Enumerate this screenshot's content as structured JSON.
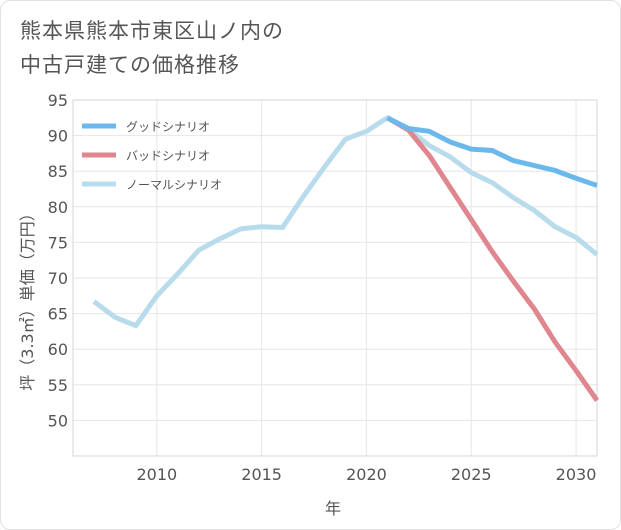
{
  "title_lines": [
    "熊本県熊本市東区山ノ内の",
    "中古戸建ての価格推移"
  ],
  "chart_data": {
    "type": "line",
    "xlabel": "年",
    "ylabel": "坪（3.3㎡）単価（万円）",
    "xlim": [
      2006,
      2031
    ],
    "ylim": [
      45,
      95
    ],
    "xticks": [
      2010,
      2015,
      2020,
      2025,
      2030
    ],
    "yticks": [
      50,
      55,
      60,
      65,
      70,
      75,
      80,
      85,
      90,
      95
    ],
    "grid": true,
    "legend_position": "top-left",
    "series": [
      {
        "name": "グッドシナリオ",
        "color": "#6bb9ec",
        "x": [
          2021,
          2022,
          2023,
          2024,
          2025,
          2026,
          2027,
          2028,
          2029,
          2030,
          2031
        ],
        "y": [
          92.5,
          91.0,
          90.6,
          89.1,
          88.1,
          87.9,
          86.5,
          85.8,
          85.1,
          84.0,
          83.0
        ]
      },
      {
        "name": "バッドシナリオ",
        "color": "#e0868f",
        "x": [
          2021,
          2022,
          2023,
          2024,
          2025,
          2026,
          2027,
          2028,
          2029,
          2030,
          2031
        ],
        "y": [
          92.5,
          90.8,
          87.2,
          82.7,
          78.2,
          73.7,
          69.6,
          65.7,
          61.0,
          57.0,
          52.8
        ]
      },
      {
        "name": "ノーマルシナリオ",
        "color": "#b8dcec",
        "x": [
          2007,
          2008,
          2009,
          2010,
          2011,
          2012,
          2013,
          2014,
          2015,
          2016,
          2017,
          2018,
          2019,
          2020,
          2021,
          2022,
          2023,
          2024,
          2025,
          2026,
          2027,
          2028,
          2029,
          2030,
          2031
        ],
        "y": [
          66.7,
          64.5,
          63.3,
          67.5,
          70.6,
          73.9,
          75.5,
          76.9,
          77.2,
          77.1,
          81.5,
          85.6,
          89.5,
          90.6,
          92.5,
          90.9,
          88.6,
          87.0,
          84.8,
          83.4,
          81.3,
          79.5,
          77.2,
          75.7,
          73.3
        ]
      }
    ]
  }
}
